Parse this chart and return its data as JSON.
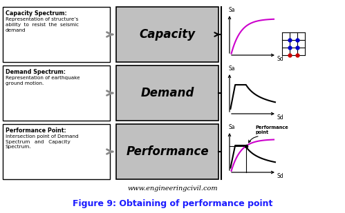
{
  "title": "Figure 9: Obtaining of performance point",
  "watermark": "www.engineeringcivil.com",
  "bg_color": "#ffffff",
  "left_boxes": [
    {
      "title": "Capacity Spectrum:",
      "body": "Representation of structure’s\nability  to  resist  the  seismic\ndemand"
    },
    {
      "title": "Demand Spectrum:",
      "body": "Representation of earthquake\nground motion."
    },
    {
      "title": "Performance Point:",
      "body": "Intersection point of Demand\nSpectrum   and   Capacity\nSpectrum."
    }
  ],
  "center_boxes": [
    "Capacity",
    "Demand",
    "Performance"
  ],
  "capacity_curve_color": "#cc00cc",
  "demand_curve_color": "#000000",
  "grid_blue": "#0000cc",
  "grid_red": "#cc0000"
}
